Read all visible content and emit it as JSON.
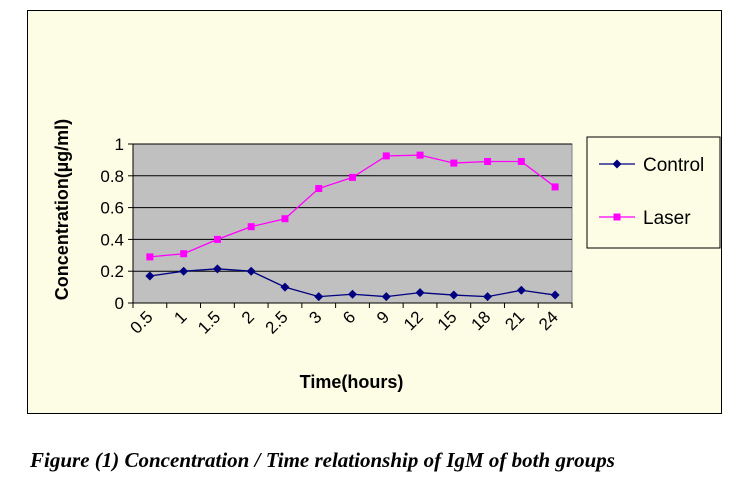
{
  "chart_data": {
    "type": "line",
    "categories": [
      "0.5",
      "1",
      "1.5",
      "2",
      "2.5",
      "3",
      "6",
      "9",
      "12",
      "15",
      "18",
      "21",
      "24"
    ],
    "series": [
      {
        "name": "Control",
        "values": [
          0.17,
          0.2,
          0.215,
          0.2,
          0.1,
          0.04,
          0.055,
          0.04,
          0.065,
          0.05,
          0.04,
          0.08,
          0.05
        ]
      },
      {
        "name": "Laser",
        "values": [
          0.29,
          0.31,
          0.4,
          0.48,
          0.53,
          0.72,
          0.79,
          0.925,
          0.93,
          0.88,
          0.89,
          0.89,
          0.73
        ]
      }
    ],
    "xlabel": "Time(hours)",
    "ylabel": "Concentration(µg/ml)",
    "ylim": [
      0,
      1
    ],
    "yticks": [
      "0",
      "0.2",
      "0.4",
      "0.6",
      "0.8",
      "1"
    ],
    "grid": true,
    "legend_position": "right",
    "colors": {
      "plot_background": "#c0c0c0",
      "chart_background": "#fdfde6",
      "Control": "#000080",
      "Laser": "#ff00ff"
    }
  },
  "caption": "Figure (1) Concentration / Time relationship of IgM of both groups"
}
